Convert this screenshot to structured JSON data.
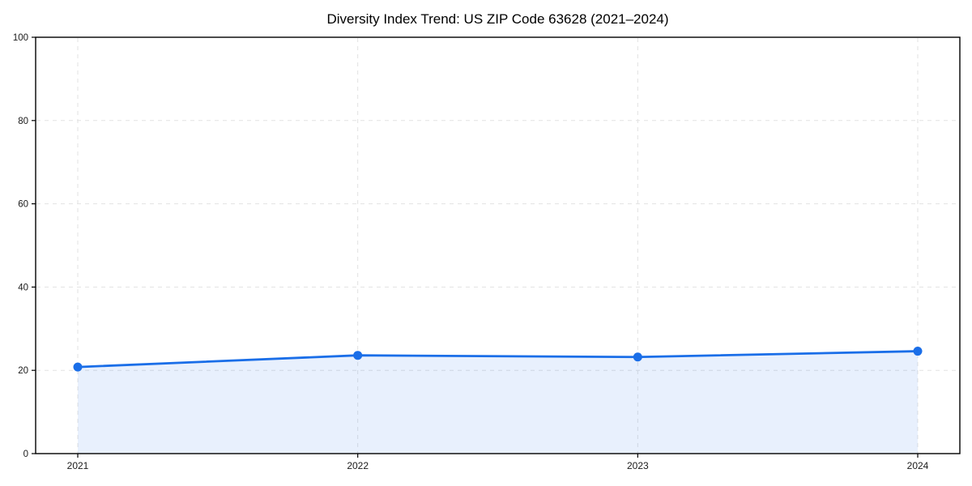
{
  "chart_data": {
    "type": "line",
    "area_fill": true,
    "title": "Diversity Index Trend: US ZIP Code 63628 (2021–2024)",
    "x": [
      "2021",
      "2022",
      "2023",
      "2024"
    ],
    "series": [
      {
        "name": "Diversity Index",
        "values": [
          20.8,
          23.6,
          23.2,
          24.6
        ]
      }
    ],
    "xlabel": "",
    "ylabel": "",
    "ylim": [
      0,
      100
    ],
    "yticks": [
      0,
      20,
      40,
      60,
      80,
      100
    ],
    "grid": "dashed",
    "legend": "none",
    "colors": {
      "line": "#1a6ee8",
      "marker": "#1a6ee8",
      "fill_opacity": 0.1,
      "grid": "#e2e2e2",
      "axis": "#000000",
      "tick_text": "#1a1a1a",
      "background": "#ffffff"
    }
  }
}
